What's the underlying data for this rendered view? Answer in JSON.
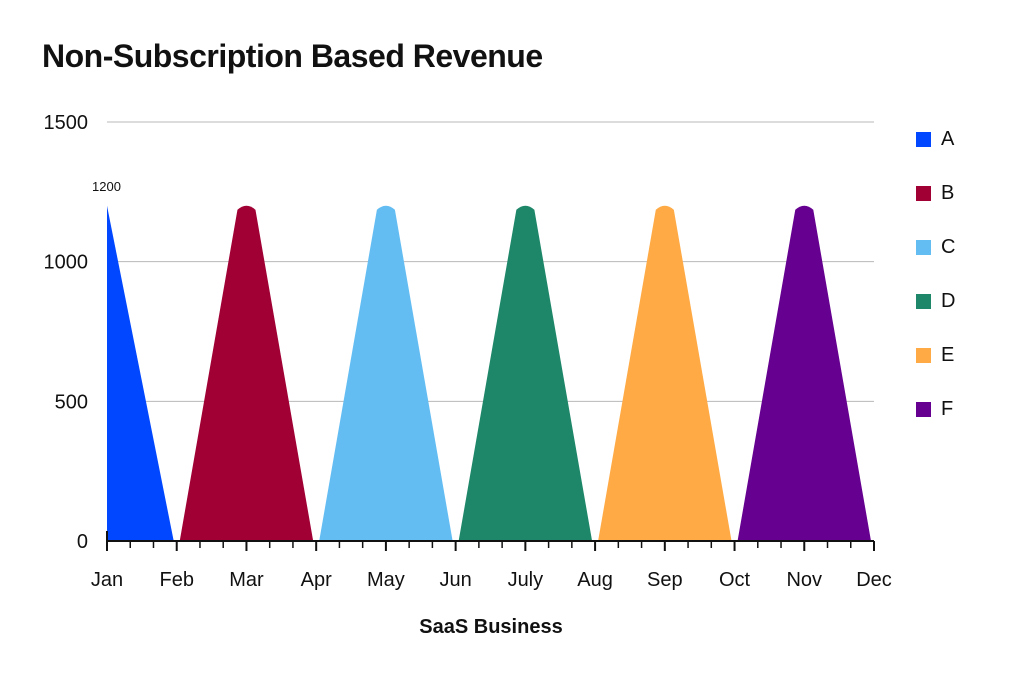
{
  "chart_data": {
    "type": "area",
    "title": "Non-Subscription Based Revenue",
    "xlabel": "SaaS Business",
    "ylabel": "",
    "categories": [
      "Jan",
      "Feb",
      "Mar",
      "Apr",
      "May",
      "Jun",
      "July",
      "Aug",
      "Sep",
      "Oct",
      "Nov",
      "Dec"
    ],
    "ylim": [
      0,
      1500
    ],
    "yticks": [
      "0",
      "500",
      "1000",
      "1500"
    ],
    "grid": true,
    "legend_position": "right",
    "data_label": "1200",
    "series": [
      {
        "name": "A",
        "color": "#0047FF",
        "values": [
          1200,
          0,
          null,
          null,
          null,
          null,
          null,
          null,
          null,
          null,
          null,
          null
        ]
      },
      {
        "name": "B",
        "color": "#A10035",
        "values": [
          null,
          0,
          1200,
          0,
          null,
          null,
          null,
          null,
          null,
          null,
          null,
          null
        ]
      },
      {
        "name": "C",
        "color": "#63BDF3",
        "values": [
          null,
          null,
          null,
          0,
          1200,
          0,
          null,
          null,
          null,
          null,
          null,
          null
        ]
      },
      {
        "name": "D",
        "color": "#1E8769",
        "values": [
          null,
          null,
          null,
          null,
          null,
          0,
          1200,
          0,
          null,
          null,
          null,
          null
        ]
      },
      {
        "name": "E",
        "color": "#FFAA45",
        "values": [
          null,
          null,
          null,
          null,
          null,
          null,
          null,
          0,
          1200,
          0,
          null,
          null
        ]
      },
      {
        "name": "F",
        "color": "#660090",
        "values": [
          null,
          null,
          null,
          null,
          null,
          null,
          null,
          null,
          null,
          0,
          1200,
          0
        ]
      }
    ]
  }
}
